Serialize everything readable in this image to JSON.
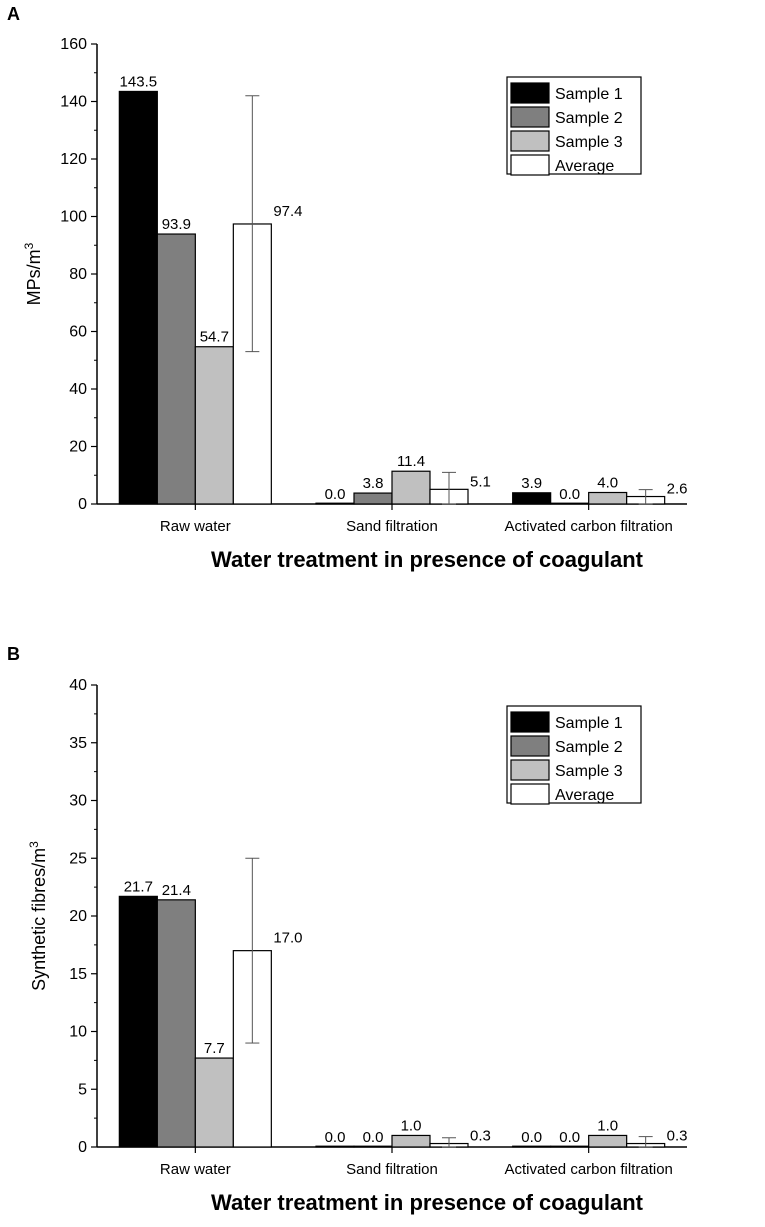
{
  "panels": [
    {
      "label": "A",
      "chart_data": {
        "type": "bar",
        "ylabel": "MPs/m",
        "ylabel_sup": "3",
        "xlabel": "Water treatment in presence of coagulant",
        "ylim": [
          0,
          160
        ],
        "yticks": [
          0,
          20,
          40,
          60,
          80,
          100,
          120,
          140,
          160
        ],
        "categories": [
          "Raw water",
          "Sand filtration",
          "Activated carbon filtration"
        ],
        "series": [
          {
            "name": "Sample 1",
            "color": "#000000",
            "values": [
              143.5,
              0.0,
              3.9
            ],
            "labels": [
              "143.5",
              "0.0",
              "3.9"
            ]
          },
          {
            "name": "Sample 2",
            "color": "#7f7f7f",
            "values": [
              93.9,
              3.8,
              0.0
            ],
            "labels": [
              "93.9",
              "3.8",
              "0.0"
            ]
          },
          {
            "name": "Sample 3",
            "color": "#c0c0c0",
            "values": [
              54.7,
              11.4,
              4.0
            ],
            "labels": [
              "54.7",
              "11.4",
              "4.0"
            ]
          },
          {
            "name": "Average",
            "color": "#ffffff",
            "values": [
              97.4,
              5.1,
              2.6
            ],
            "labels": [
              "97.4",
              "5.1",
              "2.6"
            ],
            "error_low": [
              53.0,
              0.0,
              0.0
            ],
            "error_high": [
              142.0,
              11.0,
              5.0
            ]
          }
        ],
        "legend": "top-right"
      }
    },
    {
      "label": "B",
      "chart_data": {
        "type": "bar",
        "ylabel": "Synthetic fibres/m",
        "ylabel_sup": "3",
        "xlabel": "Water treatment in presence of coagulant",
        "ylim": [
          0,
          40
        ],
        "yticks": [
          0,
          5,
          10,
          15,
          20,
          25,
          30,
          35,
          40
        ],
        "categories": [
          "Raw water",
          "Sand filtration",
          "Activated carbon filtration"
        ],
        "series": [
          {
            "name": "Sample 1",
            "color": "#000000",
            "values": [
              21.7,
              0.0,
              0.0
            ],
            "labels": [
              "21.7",
              "0.0",
              "0.0"
            ]
          },
          {
            "name": "Sample 2",
            "color": "#7f7f7f",
            "values": [
              21.4,
              0.0,
              0.0
            ],
            "labels": [
              "21.4",
              "0.0",
              "0.0"
            ]
          },
          {
            "name": "Sample 3",
            "color": "#c0c0c0",
            "values": [
              7.7,
              1.0,
              1.0
            ],
            "labels": [
              "7.7",
              "1.0",
              "1.0"
            ]
          },
          {
            "name": "Average",
            "color": "#ffffff",
            "values": [
              17.0,
              0.3,
              0.3
            ],
            "labels": [
              "17.0",
              "0.3",
              "0.3"
            ],
            "error_low": [
              9.0,
              0.0,
              0.0
            ],
            "error_high": [
              25.0,
              0.8,
              0.9
            ]
          }
        ],
        "legend": "top-right"
      }
    }
  ]
}
